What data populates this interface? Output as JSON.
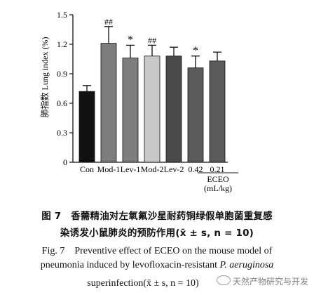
{
  "chart_data": {
    "type": "bar",
    "ylabel": "肺指数 Lung index (%)",
    "ylim": [
      0,
      1.5
    ],
    "yticks": [
      "0",
      "0.3",
      "0.6",
      "0.9",
      "1.2",
      "1.5"
    ],
    "ytick_values": [
      0,
      0.3,
      0.6,
      0.9,
      1.2,
      1.5
    ],
    "categories": [
      "Con",
      "Mod-1",
      "Lev-1",
      "Mod-2",
      "Lev-2",
      "0.42",
      "0.21"
    ],
    "values": [
      0.72,
      1.21,
      1.06,
      1.08,
      1.08,
      0.96,
      1.03
    ],
    "errors": [
      0.06,
      0.17,
      0.13,
      0.11,
      0.09,
      0.12,
      0.09
    ],
    "colors": [
      "#111111",
      "#7d7d7d",
      "#7d7d7d",
      "#c8c8c8",
      "#4a4a4a",
      "#5a5a5a",
      "#5a5a5a"
    ],
    "annotations": [
      "",
      "##",
      "*",
      "##",
      "",
      "*",
      ""
    ],
    "group_label": {
      "line1": "ECEO",
      "line2": "(mL/kg)"
    },
    "grid": false
  },
  "caption": {
    "cn_line1": "图 7　香薷精油对左氧氟沙星耐药铜绿假单胞菌重复感",
    "cn_line2": "染诱发小鼠肺炎的预防作用(x̄ ± s, n = 10)",
    "en_line1": "Fig. 7　Preventive effect of ECEO on the mouse model of",
    "en_line2_a": "pneumonia induced by levofloxacin-resistant ",
    "en_line2_b": "P. aeruginosa",
    "en_line3": "superinfection(x̄ ± s, n = 10)"
  },
  "watermark": "天然产物研究与开发"
}
